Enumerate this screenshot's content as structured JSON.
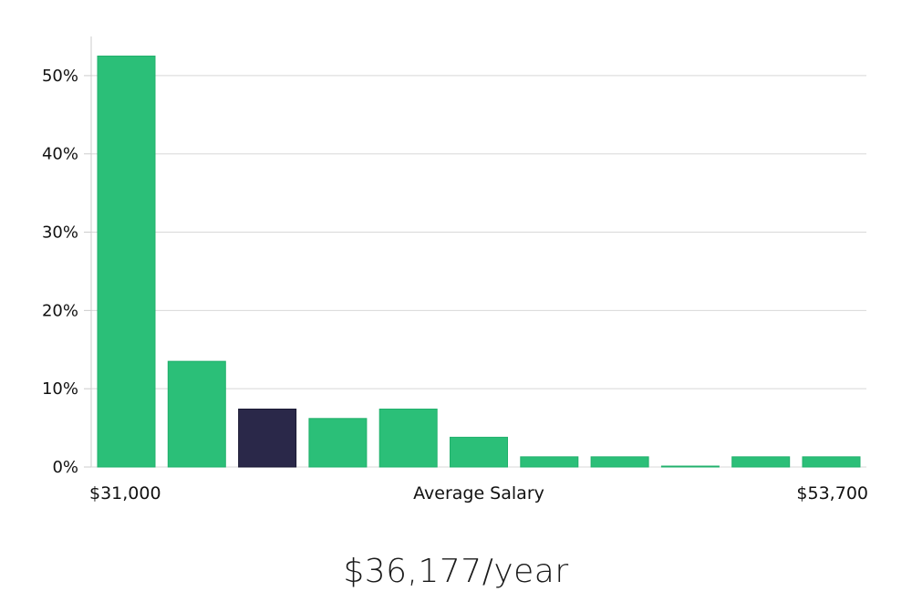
{
  "chart_data": {
    "type": "bar",
    "title": "",
    "xlabel": "Average Salary",
    "ylabel": "",
    "x_range_labels": {
      "min": "$31,000",
      "max": "$53,700"
    },
    "ylim": [
      0,
      55
    ],
    "yticks": [
      "0%",
      "10%",
      "20%",
      "30%",
      "40%",
      "50%"
    ],
    "ytick_values": [
      0,
      10,
      20,
      30,
      40,
      50
    ],
    "grid": true,
    "values": [
      52.5,
      13.5,
      7.4,
      6.2,
      7.4,
      3.8,
      1.3,
      1.3,
      0.1,
      1.3,
      1.3
    ],
    "highlight_index": 2,
    "colors": {
      "bar": "#2bbf78",
      "bar_edge": "#22b06c",
      "highlight": "#2a2849",
      "highlight_edge": "#1b1a35"
    }
  },
  "summary": {
    "average_salary": "$36,177/year"
  }
}
